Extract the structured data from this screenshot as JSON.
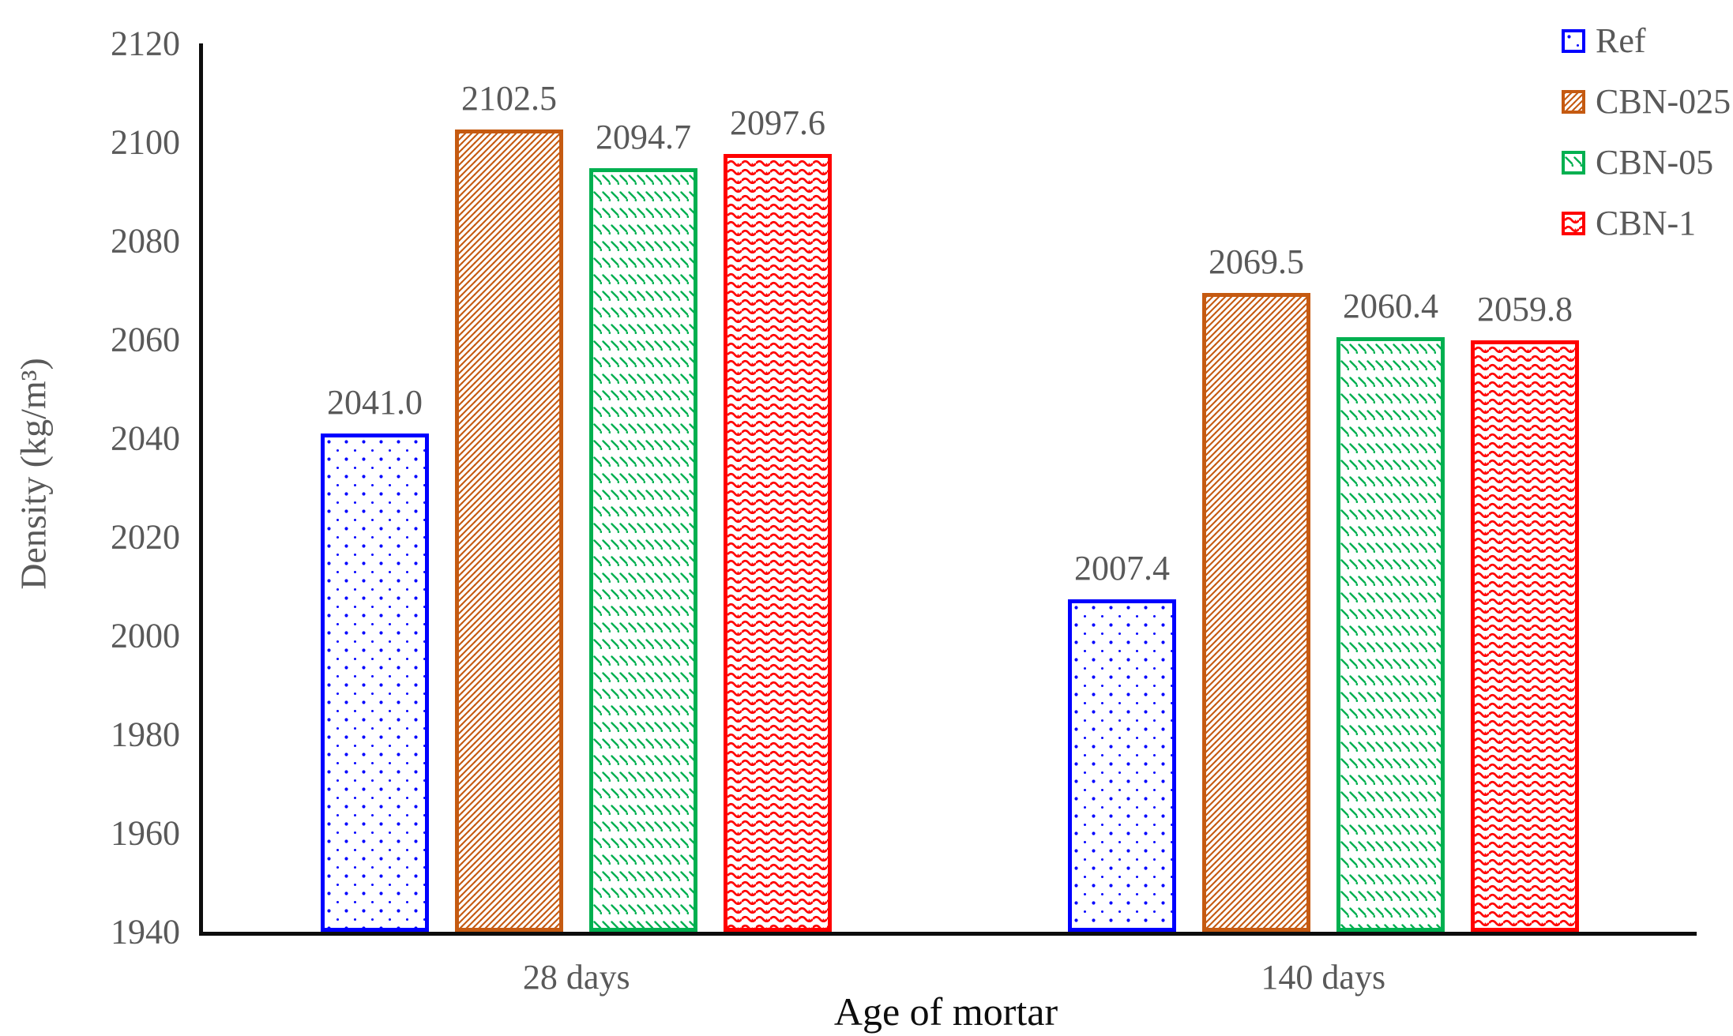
{
  "chart_data": {
    "type": "bar",
    "title": "",
    "categories": [
      "28 days",
      "140 days"
    ],
    "series": [
      {
        "name": "Ref",
        "values": [
          2041.0,
          2007.4
        ],
        "color": "#0000ff",
        "pattern": "dots"
      },
      {
        "name": "CBN-025",
        "values": [
          2102.5,
          2069.5
        ],
        "color": "#c55a11",
        "pattern": "diagonal-hatch"
      },
      {
        "name": "CBN-05",
        "values": [
          2094.7,
          2060.4
        ],
        "color": "#00b050",
        "pattern": "dash-rows"
      },
      {
        "name": "CBN-1",
        "values": [
          2097.6,
          2059.8
        ],
        "color": "#ff0000",
        "pattern": "waves"
      }
    ],
    "xlabel": "Age of mortar",
    "ylabel": "Density (kg/m³)",
    "ylim": [
      1940,
      2120
    ],
    "yticks": [
      1940,
      1960,
      1980,
      2000,
      2020,
      2040,
      2060,
      2080,
      2100,
      2120
    ],
    "value_label_decimals": 1,
    "grid": false,
    "legend_position": "top-right",
    "colors": {
      "axis_line": "#0d0d0d",
      "tick_text": "#595959",
      "value_text": "#595959",
      "axis_title_x": "#0d0d0d",
      "axis_title_y": "#595959",
      "background": "#ffffff"
    }
  }
}
